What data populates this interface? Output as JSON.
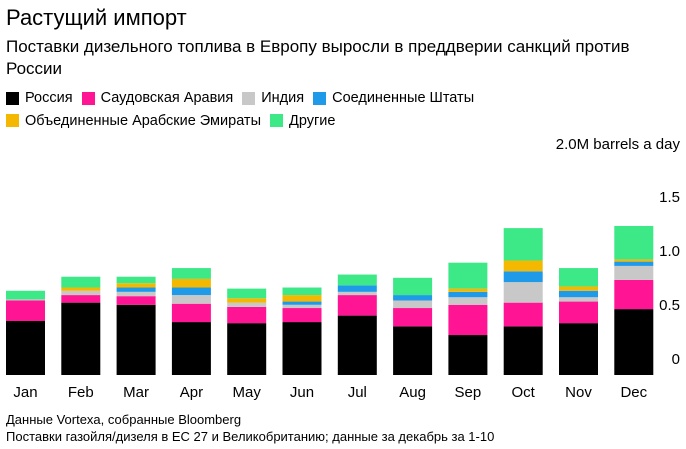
{
  "header": {
    "title": "Растущий импорт",
    "subtitle": "Поставки дизельного топлива в Европу выросли в преддверии санкций против России"
  },
  "footer": {
    "source": "Данные Vortexa, собранные Bloomberg",
    "note": "Поставки газойля/дизеля в ЕС 27 и Великобританию; данные за декабрь за 1-10"
  },
  "chart_data": {
    "type": "bar",
    "stacked": true,
    "title": "Растущий импорт",
    "subtitle": "Поставки дизельного топлива в Европу выросли в преддверии санкций против России",
    "ylabel": "2.0M barrels a day",
    "ylim": [
      0,
      2.0
    ],
    "yticks": [
      0,
      0.5,
      1.0,
      1.5
    ],
    "ytick_labels": [
      "0",
      "0.5",
      "1.0",
      "1.5"
    ],
    "grid": false,
    "legend_position": "top-left",
    "categories": [
      "Jan",
      "Feb",
      "Mar",
      "Apr",
      "May",
      "Jun",
      "Jul",
      "Aug",
      "Sep",
      "Oct",
      "Nov",
      "Dec"
    ],
    "series": [
      {
        "name": "Россия",
        "color": "#000000",
        "values": [
          0.5,
          0.67,
          0.65,
          0.49,
          0.48,
          0.49,
          0.55,
          0.45,
          0.37,
          0.45,
          0.48,
          0.61
        ]
      },
      {
        "name": "Саудовская Аравия",
        "color": "#ff1493",
        "values": [
          0.19,
          0.07,
          0.08,
          0.17,
          0.15,
          0.13,
          0.19,
          0.17,
          0.28,
          0.22,
          0.2,
          0.27
        ]
      },
      {
        "name": "Индия",
        "color": "#c8c8c8",
        "values": [
          0.01,
          0.04,
          0.04,
          0.08,
          0.04,
          0.03,
          0.03,
          0.07,
          0.07,
          0.19,
          0.04,
          0.13
        ]
      },
      {
        "name": "Соединенные Штаты",
        "color": "#1e9ae8",
        "values": [
          0.0,
          0.0,
          0.04,
          0.07,
          0.0,
          0.03,
          0.06,
          0.05,
          0.05,
          0.1,
          0.06,
          0.04
        ]
      },
      {
        "name": "Объединенные Арабские Эмираты",
        "color": "#f5b800",
        "values": [
          0.0,
          0.03,
          0.04,
          0.08,
          0.04,
          0.06,
          0.0,
          0.0,
          0.03,
          0.1,
          0.04,
          0.02
        ]
      },
      {
        "name": "Другие",
        "color": "#3de887",
        "values": [
          0.08,
          0.1,
          0.06,
          0.1,
          0.09,
          0.07,
          0.1,
          0.16,
          0.24,
          0.3,
          0.17,
          0.31
        ]
      }
    ]
  }
}
